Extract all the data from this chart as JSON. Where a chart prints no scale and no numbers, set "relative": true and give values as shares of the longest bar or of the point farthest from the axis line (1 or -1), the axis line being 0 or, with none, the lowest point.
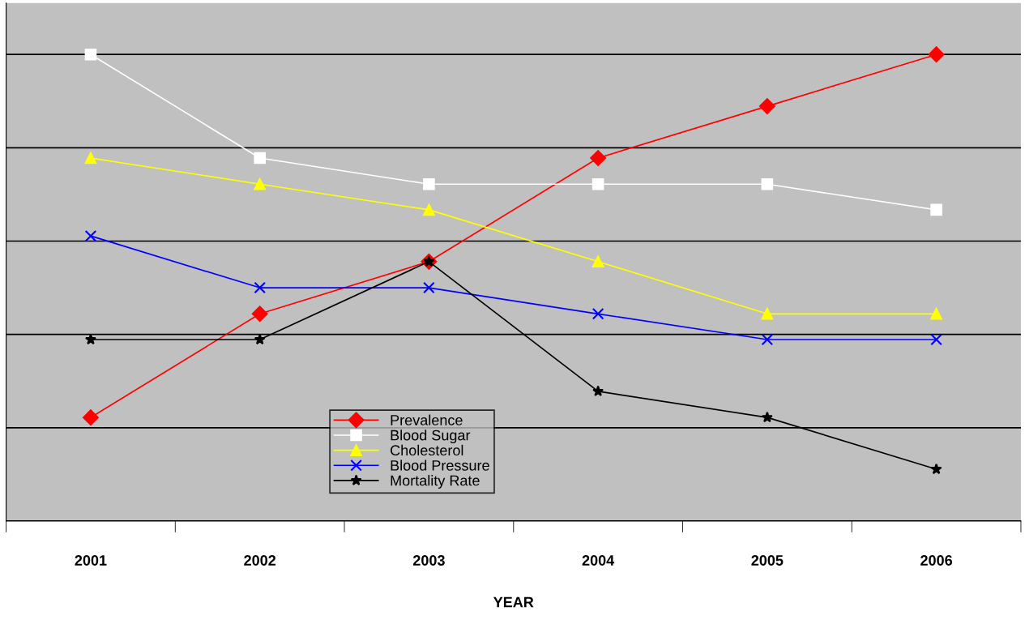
{
  "chart_data": {
    "type": "line",
    "relative": true,
    "xlabel": "YEAR",
    "categories": [
      "2001",
      "2002",
      "2003",
      "2004",
      "2005",
      "2006"
    ],
    "series": [
      {
        "name": "Prevalence",
        "color": "#ff0000",
        "marker": "diamond",
        "values": [
          0.222,
          0.444,
          0.556,
          0.778,
          0.889,
          1
        ]
      },
      {
        "name": "Blood Sugar",
        "color": "#ffffff",
        "marker": "square",
        "values": [
          1,
          0.778,
          0.722,
          0.722,
          0.722,
          0.667
        ]
      },
      {
        "name": "Cholesterol",
        "color": "#ffff00",
        "marker": "triangle",
        "values": [
          0.778,
          0.722,
          0.667,
          0.556,
          0.444,
          0.444
        ]
      },
      {
        "name": "Blood Pressure",
        "color": "#0000ff",
        "marker": "cross",
        "values": [
          0.611,
          0.5,
          0.5,
          0.444,
          0.389,
          0.389
        ]
      },
      {
        "name": "Mortality Rate",
        "color": "#000000",
        "marker": "star",
        "values": [
          0.389,
          0.389,
          0.556,
          0.278,
          0.222,
          0.111
        ]
      }
    ],
    "grid": "y",
    "legend": "bottom",
    "line_style": "solid"
  }
}
